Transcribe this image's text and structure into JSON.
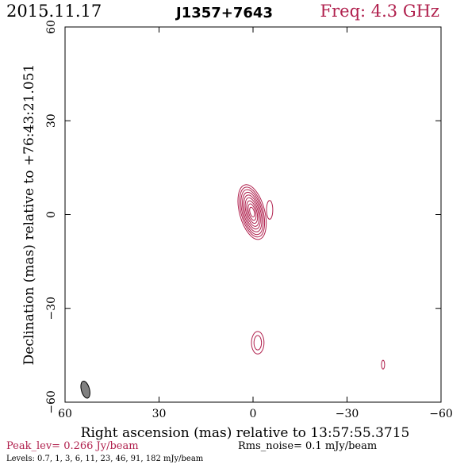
{
  "header": {
    "date": "2015.11.17",
    "source": "J1357+7643",
    "freq": "Freq: 4.3 GHz"
  },
  "footer": {
    "peak": "Peak_lev=  0.266 Jy/beam",
    "rms": "Rms_noise=  0.1 mJy/beam",
    "levels": "Levels: 0.7,   1,   3,   6,  11,  23,  46,  91, 182 mJy/beam"
  },
  "colors": {
    "contour": "#b0204d",
    "beam": "#808080",
    "axes": "#000000"
  },
  "chart_data": {
    "type": "contour",
    "title": "J1357+7643",
    "xlabel": "Right ascension (mas) relative to 13:57:55.3715",
    "ylabel": "Declination (mas) relative to +76:43:21.051",
    "xlim": [
      60,
      -60
    ],
    "ylim": [
      -60,
      60
    ],
    "xticks": [
      60,
      30,
      0,
      -30,
      -60
    ],
    "yticks": [
      -60,
      -30,
      0,
      30,
      60
    ],
    "xtick_labels": [
      "60",
      "30",
      "0",
      "−30",
      "−60"
    ],
    "ytick_labels": [
      "−60",
      "−30",
      "0",
      "30",
      "60"
    ],
    "levels_mJy": [
      0.7,
      1,
      3,
      6,
      11,
      23,
      46,
      91,
      182
    ],
    "peak_Jy_per_beam": 0.266,
    "rms_mJy_per_beam": 0.1,
    "components": [
      {
        "name": "core",
        "x": 0.3,
        "y": 0.8,
        "levels": [
          {
            "a": 4.0,
            "b": 9.0,
            "pa": -15
          },
          {
            "a": 3.5,
            "b": 8.2,
            "pa": -15
          },
          {
            "a": 3.1,
            "b": 7.4,
            "pa": -15
          },
          {
            "a": 2.7,
            "b": 6.5,
            "pa": -15
          },
          {
            "a": 2.3,
            "b": 5.6,
            "pa": -15
          },
          {
            "a": 1.9,
            "b": 4.7,
            "pa": -15
          },
          {
            "a": 1.5,
            "b": 3.7,
            "pa": -15
          },
          {
            "a": 1.1,
            "b": 2.7,
            "pa": -15
          },
          {
            "a": 0.7,
            "b": 1.6,
            "pa": -15
          }
        ]
      },
      {
        "name": "jet-extension",
        "x": -5.3,
        "y": 1.5,
        "levels": [
          {
            "a": 1.0,
            "b": 3.0,
            "pa": 0
          }
        ]
      },
      {
        "name": "south-feature",
        "x": -1.5,
        "y": -41,
        "levels": [
          {
            "a": 2.0,
            "b": 3.6,
            "pa": 0
          },
          {
            "a": 1.2,
            "b": 2.3,
            "pa": 0
          }
        ]
      },
      {
        "name": "east-spot",
        "x": -41.5,
        "y": -48,
        "levels": [
          {
            "a": 0.5,
            "b": 1.4,
            "pa": 0
          }
        ]
      }
    ],
    "beam": {
      "x": 53.5,
      "y": -56,
      "major_mas": 5.6,
      "minor_mas": 2.6,
      "pa": -15
    }
  }
}
